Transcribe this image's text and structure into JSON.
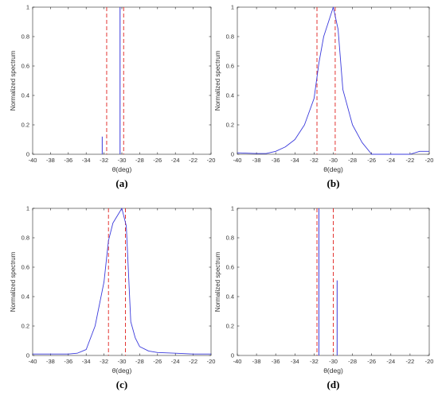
{
  "colors": {
    "spectrum": "#3b3bdc",
    "truth": "#e0201d",
    "axis": "#262626"
  },
  "chart_data": [
    {
      "type": "line",
      "panel_label": "(a)",
      "xlabel": "θ(deg)",
      "ylabel": "Normalized spectrum",
      "xlim": [
        -40,
        -20
      ],
      "ylim": [
        0,
        1
      ],
      "xticks": [
        -40,
        -38,
        -36,
        -34,
        -32,
        -30,
        -28,
        -26,
        -24,
        -22,
        -20
      ],
      "yticks": [
        0,
        0.2,
        0.4,
        0.6,
        0.8,
        1
      ],
      "grid": false,
      "true_angles": [
        -31.7,
        -29.8
      ],
      "series": [
        {
          "style": "stem",
          "x": [
            -32.2,
            -30.2
          ],
          "y": [
            0.12,
            1.0
          ]
        }
      ]
    },
    {
      "type": "line",
      "panel_label": "(b)",
      "xlabel": "θ(deg)",
      "ylabel": "Normalized spectrum",
      "xlim": [
        -40,
        -20
      ],
      "ylim": [
        0,
        1
      ],
      "xticks": [
        -40,
        -38,
        -36,
        -34,
        -32,
        -30,
        -28,
        -26,
        -24,
        -22,
        -20
      ],
      "yticks": [
        0,
        0.2,
        0.4,
        0.6,
        0.8,
        1
      ],
      "grid": false,
      "true_angles": [
        -31.7,
        -29.8
      ],
      "series": [
        {
          "style": "line",
          "x": [
            -40,
            -38,
            -37,
            -36,
            -35,
            -34,
            -33,
            -32,
            -31.5,
            -31,
            -30.5,
            -30,
            -29.5,
            -29,
            -28,
            -27,
            -26,
            -25,
            -24,
            -23,
            -22,
            -21,
            -20
          ],
          "y": [
            0.01,
            0.005,
            0.005,
            0.02,
            0.05,
            0.1,
            0.2,
            0.38,
            0.62,
            0.8,
            0.9,
            1.0,
            0.85,
            0.44,
            0.2,
            0.08,
            0.0,
            0.0,
            0.0,
            0.0,
            0.0,
            0.02,
            0.02
          ]
        }
      ]
    },
    {
      "type": "line",
      "panel_label": "(c)",
      "xlabel": "θ(deg)",
      "ylabel": "Normalized spectrum",
      "xlim": [
        -40,
        -20
      ],
      "ylim": [
        0,
        1
      ],
      "xticks": [
        -40,
        -38,
        -36,
        -34,
        -32,
        -30,
        -28,
        -26,
        -24,
        -22,
        -20
      ],
      "yticks": [
        0,
        0.2,
        0.4,
        0.6,
        0.8,
        1
      ],
      "grid": false,
      "true_angles": [
        -31.5,
        -29.6
      ],
      "series": [
        {
          "style": "line",
          "x": [
            -40,
            -38,
            -36,
            -35,
            -34,
            -33,
            -32,
            -31.5,
            -31,
            -30.5,
            -30,
            -29.5,
            -29,
            -28.5,
            -28,
            -27,
            -26,
            -24,
            -22,
            -20
          ],
          "y": [
            0.01,
            0.01,
            0.01,
            0.015,
            0.04,
            0.2,
            0.5,
            0.78,
            0.9,
            0.95,
            1.0,
            0.88,
            0.23,
            0.12,
            0.06,
            0.03,
            0.02,
            0.015,
            0.01,
            0.01
          ]
        }
      ]
    },
    {
      "type": "line",
      "panel_label": "(d)",
      "xlabel": "θ(deg)",
      "ylabel": "Normalized spectrum",
      "xlim": [
        -40,
        -20
      ],
      "ylim": [
        0,
        1
      ],
      "xticks": [
        -40,
        -38,
        -36,
        -34,
        -32,
        -30,
        -28,
        -26,
        -24,
        -22,
        -20
      ],
      "yticks": [
        0,
        0.2,
        0.4,
        0.6,
        0.8,
        1
      ],
      "grid": false,
      "true_angles": [
        -31.7,
        -30.0
      ],
      "series": [
        {
          "style": "stem",
          "x": [
            -31.5,
            -29.6
          ],
          "y": [
            1.0,
            0.51
          ]
        }
      ]
    }
  ]
}
